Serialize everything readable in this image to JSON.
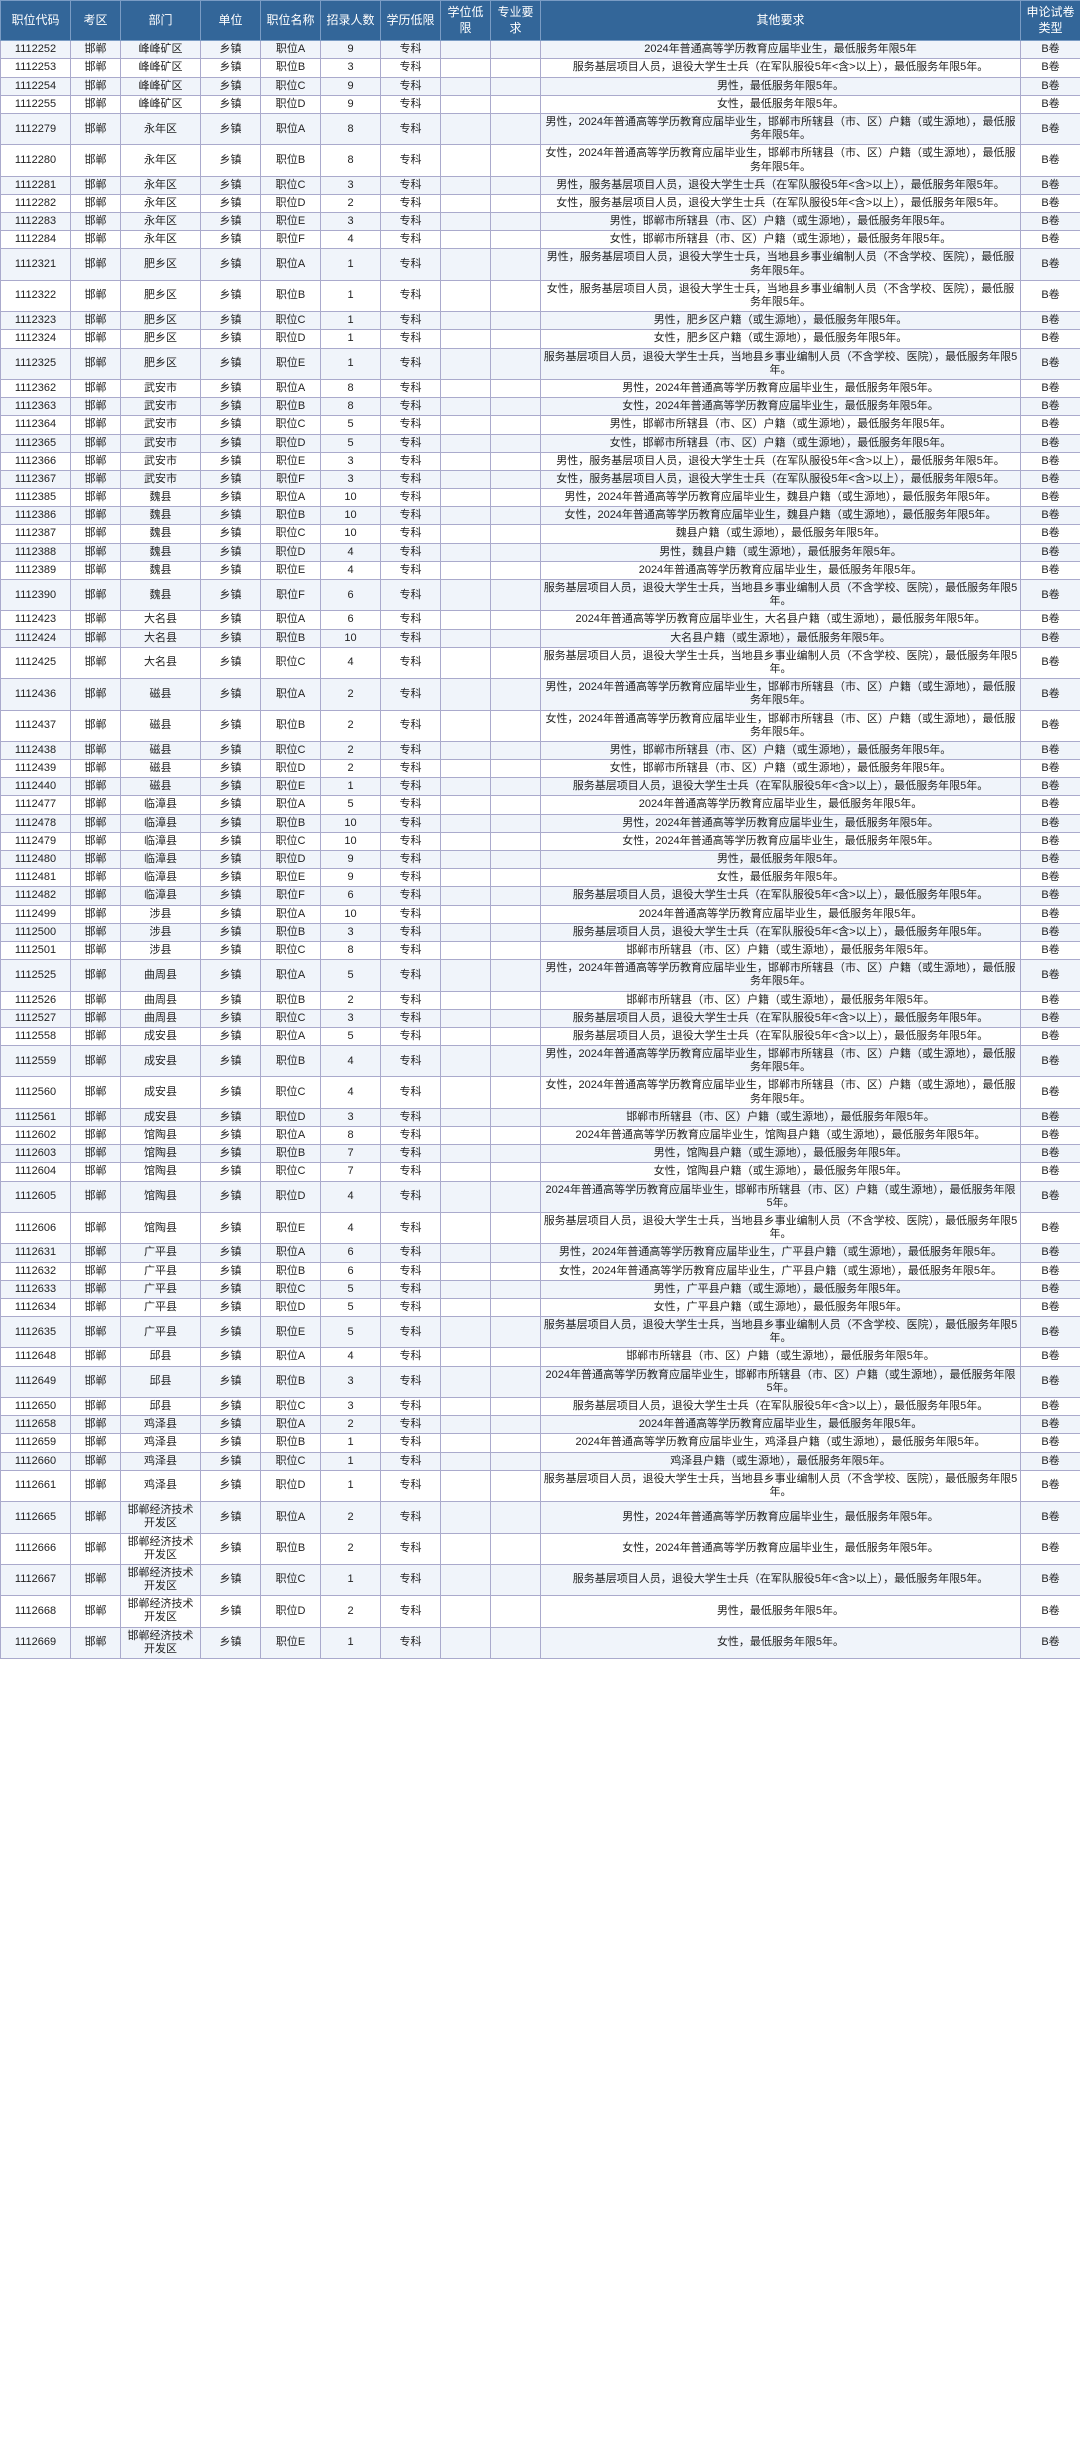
{
  "columns": [
    "职位代码",
    "考区",
    "部门",
    "单位",
    "职位名称",
    "招录人数",
    "学历低限",
    "学位低限",
    "专业要求",
    "其他要求",
    "申论试卷类型"
  ],
  "rows": [
    [
      "1112252",
      "邯郸",
      "峰峰矿区",
      "乡镇",
      "职位A",
      "9",
      "专科",
      "",
      "",
      "2024年普通高等学历教育应届毕业生，最低服务年限5年",
      "B卷"
    ],
    [
      "1112253",
      "邯郸",
      "峰峰矿区",
      "乡镇",
      "职位B",
      "3",
      "专科",
      "",
      "",
      "服务基层项目人员，退役大学生士兵（在军队服役5年<含>以上），最低服务年限5年。",
      "B卷"
    ],
    [
      "1112254",
      "邯郸",
      "峰峰矿区",
      "乡镇",
      "职位C",
      "9",
      "专科",
      "",
      "",
      "男性，最低服务年限5年。",
      "B卷"
    ],
    [
      "1112255",
      "邯郸",
      "峰峰矿区",
      "乡镇",
      "职位D",
      "9",
      "专科",
      "",
      "",
      "女性，最低服务年限5年。",
      "B卷"
    ],
    [
      "1112279",
      "邯郸",
      "永年区",
      "乡镇",
      "职位A",
      "8",
      "专科",
      "",
      "",
      "男性，2024年普通高等学历教育应届毕业生，邯郸市所辖县（市、区）户籍（或生源地），最低服务年限5年。",
      "B卷"
    ],
    [
      "1112280",
      "邯郸",
      "永年区",
      "乡镇",
      "职位B",
      "8",
      "专科",
      "",
      "",
      "女性，2024年普通高等学历教育应届毕业生，邯郸市所辖县（市、区）户籍（或生源地），最低服务年限5年。",
      "B卷"
    ],
    [
      "1112281",
      "邯郸",
      "永年区",
      "乡镇",
      "职位C",
      "3",
      "专科",
      "",
      "",
      "男性，服务基层项目人员，退役大学生士兵（在军队服役5年<含>以上），最低服务年限5年。",
      "B卷"
    ],
    [
      "1112282",
      "邯郸",
      "永年区",
      "乡镇",
      "职位D",
      "2",
      "专科",
      "",
      "",
      "女性，服务基层项目人员，退役大学生士兵（在军队服役5年<含>以上），最低服务年限5年。",
      "B卷"
    ],
    [
      "1112283",
      "邯郸",
      "永年区",
      "乡镇",
      "职位E",
      "3",
      "专科",
      "",
      "",
      "男性，邯郸市所辖县（市、区）户籍（或生源地），最低服务年限5年。",
      "B卷"
    ],
    [
      "1112284",
      "邯郸",
      "永年区",
      "乡镇",
      "职位F",
      "4",
      "专科",
      "",
      "",
      "女性，邯郸市所辖县（市、区）户籍（或生源地），最低服务年限5年。",
      "B卷"
    ],
    [
      "1112321",
      "邯郸",
      "肥乡区",
      "乡镇",
      "职位A",
      "1",
      "专科",
      "",
      "",
      "男性，服务基层项目人员，退役大学生士兵，当地县乡事业编制人员（不含学校、医院），最低服务年限5年。",
      "B卷"
    ],
    [
      "1112322",
      "邯郸",
      "肥乡区",
      "乡镇",
      "职位B",
      "1",
      "专科",
      "",
      "",
      "女性，服务基层项目人员，退役大学生士兵，当地县乡事业编制人员（不含学校、医院），最低服务年限5年。",
      "B卷"
    ],
    [
      "1112323",
      "邯郸",
      "肥乡区",
      "乡镇",
      "职位C",
      "1",
      "专科",
      "",
      "",
      "男性，肥乡区户籍（或生源地），最低服务年限5年。",
      "B卷"
    ],
    [
      "1112324",
      "邯郸",
      "肥乡区",
      "乡镇",
      "职位D",
      "1",
      "专科",
      "",
      "",
      "女性，肥乡区户籍（或生源地），最低服务年限5年。",
      "B卷"
    ],
    [
      "1112325",
      "邯郸",
      "肥乡区",
      "乡镇",
      "职位E",
      "1",
      "专科",
      "",
      "",
      "服务基层项目人员，退役大学生士兵，当地县乡事业编制人员（不含学校、医院），最低服务年限5年。",
      "B卷"
    ],
    [
      "1112362",
      "邯郸",
      "武安市",
      "乡镇",
      "职位A",
      "8",
      "专科",
      "",
      "",
      "男性，2024年普通高等学历教育应届毕业生，最低服务年限5年。",
      "B卷"
    ],
    [
      "1112363",
      "邯郸",
      "武安市",
      "乡镇",
      "职位B",
      "8",
      "专科",
      "",
      "",
      "女性，2024年普通高等学历教育应届毕业生，最低服务年限5年。",
      "B卷"
    ],
    [
      "1112364",
      "邯郸",
      "武安市",
      "乡镇",
      "职位C",
      "5",
      "专科",
      "",
      "",
      "男性，邯郸市所辖县（市、区）户籍（或生源地），最低服务年限5年。",
      "B卷"
    ],
    [
      "1112365",
      "邯郸",
      "武安市",
      "乡镇",
      "职位D",
      "5",
      "专科",
      "",
      "",
      "女性，邯郸市所辖县（市、区）户籍（或生源地），最低服务年限5年。",
      "B卷"
    ],
    [
      "1112366",
      "邯郸",
      "武安市",
      "乡镇",
      "职位E",
      "3",
      "专科",
      "",
      "",
      "男性，服务基层项目人员，退役大学生士兵（在军队服役5年<含>以上），最低服务年限5年。",
      "B卷"
    ],
    [
      "1112367",
      "邯郸",
      "武安市",
      "乡镇",
      "职位F",
      "3",
      "专科",
      "",
      "",
      "女性，服务基层项目人员，退役大学生士兵（在军队服役5年<含>以上），最低服务年限5年。",
      "B卷"
    ],
    [
      "1112385",
      "邯郸",
      "魏县",
      "乡镇",
      "职位A",
      "10",
      "专科",
      "",
      "",
      "男性，2024年普通高等学历教育应届毕业生，魏县户籍（或生源地），最低服务年限5年。",
      "B卷"
    ],
    [
      "1112386",
      "邯郸",
      "魏县",
      "乡镇",
      "职位B",
      "10",
      "专科",
      "",
      "",
      "女性，2024年普通高等学历教育应届毕业生，魏县户籍（或生源地），最低服务年限5年。",
      "B卷"
    ],
    [
      "1112387",
      "邯郸",
      "魏县",
      "乡镇",
      "职位C",
      "10",
      "专科",
      "",
      "",
      "魏县户籍（或生源地），最低服务年限5年。",
      "B卷"
    ],
    [
      "1112388",
      "邯郸",
      "魏县",
      "乡镇",
      "职位D",
      "4",
      "专科",
      "",
      "",
      "男性，魏县户籍（或生源地），最低服务年限5年。",
      "B卷"
    ],
    [
      "1112389",
      "邯郸",
      "魏县",
      "乡镇",
      "职位E",
      "4",
      "专科",
      "",
      "",
      "2024年普通高等学历教育应届毕业生，最低服务年限5年。",
      "B卷"
    ],
    [
      "1112390",
      "邯郸",
      "魏县",
      "乡镇",
      "职位F",
      "6",
      "专科",
      "",
      "",
      "服务基层项目人员，退役大学生士兵，当地县乡事业编制人员（不含学校、医院），最低服务年限5年。",
      "B卷"
    ],
    [
      "1112423",
      "邯郸",
      "大名县",
      "乡镇",
      "职位A",
      "6",
      "专科",
      "",
      "",
      "2024年普通高等学历教育应届毕业生，大名县户籍（或生源地），最低服务年限5年。",
      "B卷"
    ],
    [
      "1112424",
      "邯郸",
      "大名县",
      "乡镇",
      "职位B",
      "10",
      "专科",
      "",
      "",
      "大名县户籍（或生源地），最低服务年限5年。",
      "B卷"
    ],
    [
      "1112425",
      "邯郸",
      "大名县",
      "乡镇",
      "职位C",
      "4",
      "专科",
      "",
      "",
      "服务基层项目人员，退役大学生士兵，当地县乡事业编制人员（不含学校、医院），最低服务年限5年。",
      "B卷"
    ],
    [
      "1112436",
      "邯郸",
      "磁县",
      "乡镇",
      "职位A",
      "2",
      "专科",
      "",
      "",
      "男性，2024年普通高等学历教育应届毕业生，邯郸市所辖县（市、区）户籍（或生源地），最低服务年限5年。",
      "B卷"
    ],
    [
      "1112437",
      "邯郸",
      "磁县",
      "乡镇",
      "职位B",
      "2",
      "专科",
      "",
      "",
      "女性，2024年普通高等学历教育应届毕业生，邯郸市所辖县（市、区）户籍（或生源地），最低服务年限5年。",
      "B卷"
    ],
    [
      "1112438",
      "邯郸",
      "磁县",
      "乡镇",
      "职位C",
      "2",
      "专科",
      "",
      "",
      "男性，邯郸市所辖县（市、区）户籍（或生源地），最低服务年限5年。",
      "B卷"
    ],
    [
      "1112439",
      "邯郸",
      "磁县",
      "乡镇",
      "职位D",
      "2",
      "专科",
      "",
      "",
      "女性，邯郸市所辖县（市、区）户籍（或生源地），最低服务年限5年。",
      "B卷"
    ],
    [
      "1112440",
      "邯郸",
      "磁县",
      "乡镇",
      "职位E",
      "1",
      "专科",
      "",
      "",
      "服务基层项目人员，退役大学生士兵（在军队服役5年<含>以上），最低服务年限5年。",
      "B卷"
    ],
    [
      "1112477",
      "邯郸",
      "临漳县",
      "乡镇",
      "职位A",
      "5",
      "专科",
      "",
      "",
      "2024年普通高等学历教育应届毕业生，最低服务年限5年。",
      "B卷"
    ],
    [
      "1112478",
      "邯郸",
      "临漳县",
      "乡镇",
      "职位B",
      "10",
      "专科",
      "",
      "",
      "男性，2024年普通高等学历教育应届毕业生，最低服务年限5年。",
      "B卷"
    ],
    [
      "1112479",
      "邯郸",
      "临漳县",
      "乡镇",
      "职位C",
      "10",
      "专科",
      "",
      "",
      "女性，2024年普通高等学历教育应届毕业生，最低服务年限5年。",
      "B卷"
    ],
    [
      "1112480",
      "邯郸",
      "临漳县",
      "乡镇",
      "职位D",
      "9",
      "专科",
      "",
      "",
      "男性，最低服务年限5年。",
      "B卷"
    ],
    [
      "1112481",
      "邯郸",
      "临漳县",
      "乡镇",
      "职位E",
      "9",
      "专科",
      "",
      "",
      "女性，最低服务年限5年。",
      "B卷"
    ],
    [
      "1112482",
      "邯郸",
      "临漳县",
      "乡镇",
      "职位F",
      "6",
      "专科",
      "",
      "",
      "服务基层项目人员，退役大学生士兵（在军队服役5年<含>以上），最低服务年限5年。",
      "B卷"
    ],
    [
      "1112499",
      "邯郸",
      "涉县",
      "乡镇",
      "职位A",
      "10",
      "专科",
      "",
      "",
      "2024年普通高等学历教育应届毕业生，最低服务年限5年。",
      "B卷"
    ],
    [
      "1112500",
      "邯郸",
      "涉县",
      "乡镇",
      "职位B",
      "3",
      "专科",
      "",
      "",
      "服务基层项目人员，退役大学生士兵（在军队服役5年<含>以上），最低服务年限5年。",
      "B卷"
    ],
    [
      "1112501",
      "邯郸",
      "涉县",
      "乡镇",
      "职位C",
      "8",
      "专科",
      "",
      "",
      "邯郸市所辖县（市、区）户籍（或生源地），最低服务年限5年。",
      "B卷"
    ],
    [
      "1112525",
      "邯郸",
      "曲周县",
      "乡镇",
      "职位A",
      "5",
      "专科",
      "",
      "",
      "男性，2024年普通高等学历教育应届毕业生，邯郸市所辖县（市、区）户籍（或生源地），最低服务年限5年。",
      "B卷"
    ],
    [
      "1112526",
      "邯郸",
      "曲周县",
      "乡镇",
      "职位B",
      "2",
      "专科",
      "",
      "",
      "邯郸市所辖县（市、区）户籍（或生源地），最低服务年限5年。",
      "B卷"
    ],
    [
      "1112527",
      "邯郸",
      "曲周县",
      "乡镇",
      "职位C",
      "3",
      "专科",
      "",
      "",
      "服务基层项目人员，退役大学生士兵（在军队服役5年<含>以上），最低服务年限5年。",
      "B卷"
    ],
    [
      "1112558",
      "邯郸",
      "成安县",
      "乡镇",
      "职位A",
      "5",
      "专科",
      "",
      "",
      "服务基层项目人员，退役大学生士兵（在军队服役5年<含>以上），最低服务年限5年。",
      "B卷"
    ],
    [
      "1112559",
      "邯郸",
      "成安县",
      "乡镇",
      "职位B",
      "4",
      "专科",
      "",
      "",
      "男性，2024年普通高等学历教育应届毕业生，邯郸市所辖县（市、区）户籍（或生源地），最低服务年限5年。",
      "B卷"
    ],
    [
      "1112560",
      "邯郸",
      "成安县",
      "乡镇",
      "职位C",
      "4",
      "专科",
      "",
      "",
      "女性，2024年普通高等学历教育应届毕业生，邯郸市所辖县（市、区）户籍（或生源地），最低服务年限5年。",
      "B卷"
    ],
    [
      "1112561",
      "邯郸",
      "成安县",
      "乡镇",
      "职位D",
      "3",
      "专科",
      "",
      "",
      "邯郸市所辖县（市、区）户籍（或生源地），最低服务年限5年。",
      "B卷"
    ],
    [
      "1112602",
      "邯郸",
      "馆陶县",
      "乡镇",
      "职位A",
      "8",
      "专科",
      "",
      "",
      "2024年普通高等学历教育应届毕业生，馆陶县户籍（或生源地），最低服务年限5年。",
      "B卷"
    ],
    [
      "1112603",
      "邯郸",
      "馆陶县",
      "乡镇",
      "职位B",
      "7",
      "专科",
      "",
      "",
      "男性，馆陶县户籍（或生源地），最低服务年限5年。",
      "B卷"
    ],
    [
      "1112604",
      "邯郸",
      "馆陶县",
      "乡镇",
      "职位C",
      "7",
      "专科",
      "",
      "",
      "女性，馆陶县户籍（或生源地），最低服务年限5年。",
      "B卷"
    ],
    [
      "1112605",
      "邯郸",
      "馆陶县",
      "乡镇",
      "职位D",
      "4",
      "专科",
      "",
      "",
      "2024年普通高等学历教育应届毕业生，邯郸市所辖县（市、区）户籍（或生源地），最低服务年限5年。",
      "B卷"
    ],
    [
      "1112606",
      "邯郸",
      "馆陶县",
      "乡镇",
      "职位E",
      "4",
      "专科",
      "",
      "",
      "服务基层项目人员，退役大学生士兵，当地县乡事业编制人员（不含学校、医院），最低服务年限5年。",
      "B卷"
    ],
    [
      "1112631",
      "邯郸",
      "广平县",
      "乡镇",
      "职位A",
      "6",
      "专科",
      "",
      "",
      "男性，2024年普通高等学历教育应届毕业生，广平县户籍（或生源地），最低服务年限5年。",
      "B卷"
    ],
    [
      "1112632",
      "邯郸",
      "广平县",
      "乡镇",
      "职位B",
      "6",
      "专科",
      "",
      "",
      "女性，2024年普通高等学历教育应届毕业生，广平县户籍（或生源地），最低服务年限5年。",
      "B卷"
    ],
    [
      "1112633",
      "邯郸",
      "广平县",
      "乡镇",
      "职位C",
      "5",
      "专科",
      "",
      "",
      "男性，广平县户籍（或生源地），最低服务年限5年。",
      "B卷"
    ],
    [
      "1112634",
      "邯郸",
      "广平县",
      "乡镇",
      "职位D",
      "5",
      "专科",
      "",
      "",
      "女性，广平县户籍（或生源地），最低服务年限5年。",
      "B卷"
    ],
    [
      "1112635",
      "邯郸",
      "广平县",
      "乡镇",
      "职位E",
      "5",
      "专科",
      "",
      "",
      "服务基层项目人员，退役大学生士兵，当地县乡事业编制人员（不含学校、医院），最低服务年限5年。",
      "B卷"
    ],
    [
      "1112648",
      "邯郸",
      "邱县",
      "乡镇",
      "职位A",
      "4",
      "专科",
      "",
      "",
      "邯郸市所辖县（市、区）户籍（或生源地），最低服务年限5年。",
      "B卷"
    ],
    [
      "1112649",
      "邯郸",
      "邱县",
      "乡镇",
      "职位B",
      "3",
      "专科",
      "",
      "",
      "2024年普通高等学历教育应届毕业生，邯郸市所辖县（市、区）户籍（或生源地），最低服务年限5年。",
      "B卷"
    ],
    [
      "1112650",
      "邯郸",
      "邱县",
      "乡镇",
      "职位C",
      "3",
      "专科",
      "",
      "",
      "服务基层项目人员，退役大学生士兵（在军队服役5年<含>以上），最低服务年限5年。",
      "B卷"
    ],
    [
      "1112658",
      "邯郸",
      "鸡泽县",
      "乡镇",
      "职位A",
      "2",
      "专科",
      "",
      "",
      "2024年普通高等学历教育应届毕业生，最低服务年限5年。",
      "B卷"
    ],
    [
      "1112659",
      "邯郸",
      "鸡泽县",
      "乡镇",
      "职位B",
      "1",
      "专科",
      "",
      "",
      "2024年普通高等学历教育应届毕业生，鸡泽县户籍（或生源地），最低服务年限5年。",
      "B卷"
    ],
    [
      "1112660",
      "邯郸",
      "鸡泽县",
      "乡镇",
      "职位C",
      "1",
      "专科",
      "",
      "",
      "鸡泽县户籍（或生源地），最低服务年限5年。",
      "B卷"
    ],
    [
      "1112661",
      "邯郸",
      "鸡泽县",
      "乡镇",
      "职位D",
      "1",
      "专科",
      "",
      "",
      "服务基层项目人员，退役大学生士兵，当地县乡事业编制人员（不含学校、医院），最低服务年限5年。",
      "B卷"
    ],
    [
      "1112665",
      "邯郸",
      "邯郸经济技术开发区",
      "乡镇",
      "职位A",
      "2",
      "专科",
      "",
      "",
      "男性，2024年普通高等学历教育应届毕业生，最低服务年限5年。",
      "B卷"
    ],
    [
      "1112666",
      "邯郸",
      "邯郸经济技术开发区",
      "乡镇",
      "职位B",
      "2",
      "专科",
      "",
      "",
      "女性，2024年普通高等学历教育应届毕业生，最低服务年限5年。",
      "B卷"
    ],
    [
      "1112667",
      "邯郸",
      "邯郸经济技术开发区",
      "乡镇",
      "职位C",
      "1",
      "专科",
      "",
      "",
      "服务基层项目人员，退役大学生士兵（在军队服役5年<含>以上），最低服务年限5年。",
      "B卷"
    ],
    [
      "1112668",
      "邯郸",
      "邯郸经济技术开发区",
      "乡镇",
      "职位D",
      "2",
      "专科",
      "",
      "",
      "男性，最低服务年限5年。",
      "B卷"
    ],
    [
      "1112669",
      "邯郸",
      "邯郸经济技术开发区",
      "乡镇",
      "职位E",
      "1",
      "专科",
      "",
      "",
      "女性，最低服务年限5年。",
      "B卷"
    ]
  ]
}
